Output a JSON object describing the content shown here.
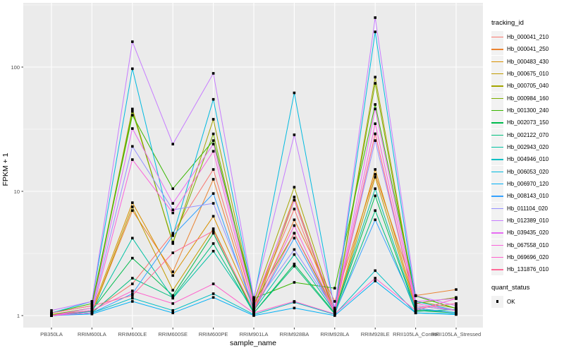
{
  "chart_data": {
    "type": "line",
    "title": "",
    "xlabel": "sample_name",
    "ylabel": "FPKM + 1",
    "y_scale": "log10",
    "y_ticks": [
      1,
      10,
      100
    ],
    "ylim": [
      1,
      330
    ],
    "grid": true,
    "legend": {
      "title": "tracking_id",
      "position": "right"
    },
    "quant_legend": {
      "title": "quant_status",
      "entries": [
        {
          "label": "OK",
          "shape": "square",
          "color": "#000000"
        }
      ]
    },
    "point_shape": "square",
    "point_color": "#000000",
    "style": {
      "panel_bg": "#EBEBEB",
      "grid_color": "#FFFFFF",
      "tick_color": "#333333",
      "tick_label_color": "#4D4D4D",
      "legend_key_bg": "#F2F2F2"
    },
    "categories": [
      "PB350LA",
      "RRIM600LA",
      "RRIM600LE",
      "RRIM600SE",
      "RRIM600PE",
      "RRIM901LA",
      "RRIM928BA",
      "RRIM928LA",
      "RRIM928LE",
      "RRII105LA_Control",
      "RRII105LA_Stressed"
    ],
    "series": [
      {
        "name": "Hb_000041_210",
        "color": "#F8766D",
        "values": [
          1.02,
          1.08,
          1.8,
          4.6,
          15,
          1.2,
          7.2,
          1.05,
          29,
          1.12,
          1.05
        ]
      },
      {
        "name": "Hb_000041_250",
        "color": "#EA8331",
        "values": [
          1.0,
          1.05,
          7.0,
          2.25,
          12.5,
          1.1,
          5.9,
          1.3,
          13.7,
          1.45,
          1.62
        ]
      },
      {
        "name": "Hb_000483_430",
        "color": "#D89000",
        "values": [
          1.02,
          1.1,
          8.1,
          2.1,
          6.3,
          1.15,
          9.0,
          1.05,
          15,
          1.2,
          1.1
        ]
      },
      {
        "name": "Hb_000675_010",
        "color": "#C09B00",
        "values": [
          1.0,
          1.05,
          7.5,
          1.6,
          5.0,
          1.05,
          8.5,
          1.02,
          13,
          1.15,
          1.05
        ]
      },
      {
        "name": "Hb_000705_040",
        "color": "#A3A500",
        "values": [
          1.05,
          1.2,
          46,
          3.8,
          38,
          1.3,
          10.8,
          1.1,
          83,
          1.3,
          1.15
        ]
      },
      {
        "name": "Hb_000984_160",
        "color": "#7CAE00",
        "values": [
          1.02,
          1.15,
          44,
          3.9,
          29,
          1.25,
          4.6,
          1.1,
          74,
          1.25,
          1.4
        ]
      },
      {
        "name": "Hb_001300_240",
        "color": "#39B600",
        "values": [
          1.05,
          1.25,
          41,
          10.5,
          25.6,
          1.37,
          1.85,
          1.66,
          50,
          1.44,
          1.14
        ]
      },
      {
        "name": "Hb_002073_150",
        "color": "#00BB4E",
        "values": [
          1.0,
          1.1,
          2.9,
          1.45,
          4.6,
          1.05,
          2.6,
          1.05,
          9.2,
          1.1,
          1.05
        ]
      },
      {
        "name": "Hb_002122_070",
        "color": "#00BF7D",
        "values": [
          1.0,
          1.05,
          2.0,
          1.4,
          3.8,
          1.05,
          2.5,
          1.03,
          7.0,
          1.08,
          1.12
        ]
      },
      {
        "name": "Hb_002943_020",
        "color": "#00C1A3",
        "values": [
          1.0,
          1.08,
          4.2,
          1.38,
          3.3,
          1.1,
          3.1,
          1.07,
          10.5,
          1.12,
          1.06
        ]
      },
      {
        "name": "Hb_004946_010",
        "color": "#00BFC4",
        "values": [
          1.0,
          1.05,
          1.38,
          1.1,
          1.5,
          1.02,
          1.28,
          1.02,
          2.3,
          1.05,
          1.03
        ]
      },
      {
        "name": "Hb_006053_020",
        "color": "#00BAE0",
        "values": [
          1.05,
          1.3,
          97,
          4.4,
          55,
          1.35,
          62,
          1.1,
          192,
          1.3,
          1.1
        ]
      },
      {
        "name": "Hb_006970_120",
        "color": "#00B0F6",
        "values": [
          1.0,
          1.03,
          1.3,
          1.05,
          1.4,
          1.0,
          1.15,
          1.0,
          1.9,
          1.05,
          1.02
        ]
      },
      {
        "name": "Hb_008143_010",
        "color": "#35A2FF",
        "values": [
          1.0,
          1.05,
          1.5,
          4.4,
          9.6,
          1.1,
          4.2,
          1.05,
          5.9,
          1.15,
          1.05
        ]
      },
      {
        "name": "Hb_011104_020",
        "color": "#9590FF",
        "values": [
          1.0,
          1.1,
          23,
          7.1,
          8.0,
          1.2,
          3.4,
          1.1,
          25.6,
          1.2,
          1.1
        ]
      },
      {
        "name": "Hb_012389_010",
        "color": "#C77CFF",
        "values": [
          1.1,
          1.3,
          160,
          24,
          89,
          1.4,
          28.5,
          1.15,
          250,
          1.45,
          1.2
        ]
      },
      {
        "name": "Hb_039435_020",
        "color": "#E76BF3",
        "values": [
          1.0,
          1.15,
          32,
          8.0,
          24,
          1.25,
          8.5,
          1.1,
          46,
          1.3,
          1.37
        ]
      },
      {
        "name": "Hb_067558_010",
        "color": "#FA62DB",
        "values": [
          1.0,
          1.05,
          18,
          6.7,
          21,
          1.15,
          5.3,
          1.08,
          35,
          1.25,
          1.1
        ]
      },
      {
        "name": "Hb_069696_020",
        "color": "#FF61CC",
        "values": [
          1.0,
          1.1,
          1.58,
          1.25,
          1.8,
          1.05,
          1.3,
          1.03,
          2.0,
          1.1,
          1.37
        ]
      },
      {
        "name": "Hb_131876_010",
        "color": "#FF6A98",
        "values": [
          1.05,
          1.2,
          1.45,
          3.2,
          4.8,
          1.1,
          4.6,
          1.05,
          29,
          1.15,
          1.25
        ]
      }
    ]
  }
}
